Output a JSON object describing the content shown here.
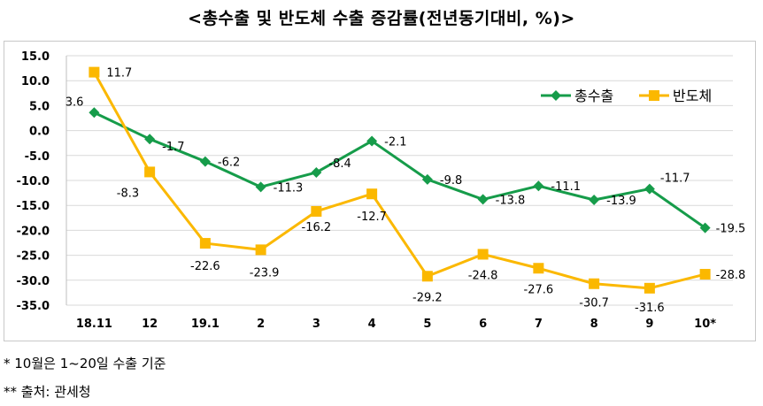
{
  "title": "<총수출 및 반도체 수출 증감률(전년동기대비, %)>",
  "notes": [
    "*  10월은  1~20일  수출  기준",
    "**  출처:  관세청"
  ],
  "colors": {
    "total_exports": "#169c4a",
    "semiconductor": "#fbb800",
    "grid": "#d9d9d9"
  },
  "chart_data": {
    "type": "line",
    "title": "<총수출 및 반도체 수출 증감률(전년동기대비, %)>",
    "categories": [
      "18.11",
      "12",
      "19.1",
      "2",
      "3",
      "4",
      "5",
      "6",
      "7",
      "8",
      "9",
      "10*"
    ],
    "series": [
      {
        "name": "총수출",
        "marker": "diamond",
        "color": "#169c4a",
        "values": [
          3.6,
          -1.7,
          -6.2,
          -11.3,
          -8.4,
          -2.1,
          -9.8,
          -13.8,
          -11.1,
          -13.9,
          -11.7,
          -19.5
        ]
      },
      {
        "name": "반도체",
        "marker": "square",
        "color": "#fbb800",
        "values": [
          11.7,
          -8.3,
          -22.6,
          -23.9,
          -16.2,
          -12.7,
          -29.2,
          -24.8,
          -27.6,
          -30.7,
          -31.6,
          -28.8
        ]
      }
    ],
    "ylim": [
      -35,
      15
    ],
    "yticks": [
      15,
      10,
      5,
      0,
      -5,
      -10,
      -15,
      -20,
      -25,
      -30,
      -35
    ],
    "ytick_labels": [
      "15.0",
      "10.0",
      "5.0",
      "0.0",
      "-5.0",
      "-10.0",
      "-15.0",
      "-20.0",
      "-25.0",
      "-30.0",
      "-35.0"
    ],
    "grid": true,
    "legend": "top-right"
  }
}
